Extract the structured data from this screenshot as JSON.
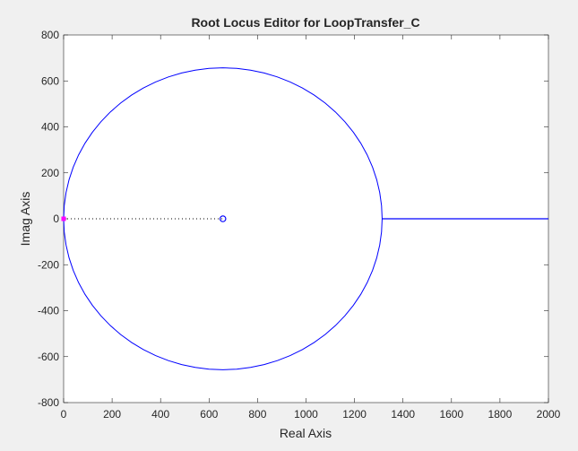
{
  "chart_data": {
    "type": "line",
    "title": "Root Locus Editor for LoopTransfer_C",
    "xlabel": "Real Axis",
    "ylabel": "Imag Axis",
    "xlim": [
      0,
      2000
    ],
    "ylim": [
      -800,
      800
    ],
    "xticks": [
      0,
      200,
      400,
      600,
      800,
      1000,
      1200,
      1400,
      1600,
      1800,
      2000
    ],
    "yticks": [
      -800,
      -600,
      -400,
      -200,
      0,
      200,
      400,
      600,
      800
    ],
    "xtick_labels": [
      "0",
      "200",
      "400",
      "600",
      "800",
      "1000",
      "1200",
      "1400",
      "1600",
      "1800",
      "2000"
    ],
    "ytick_labels": [
      "-800",
      "-600",
      "-400",
      "-200",
      "0",
      "200",
      "400",
      "600",
      "800"
    ],
    "grid": false,
    "series": [
      {
        "name": "root-locus-circle",
        "kind": "circle",
        "center": [
          657,
          0
        ],
        "radius": 657,
        "color": "#0000ff"
      },
      {
        "name": "real-axis-branch",
        "kind": "segment",
        "x": [
          1314,
          2000
        ],
        "y": [
          0,
          0
        ],
        "color": "#0000ff"
      },
      {
        "name": "closed-loop-branch",
        "kind": "segment",
        "x": [
          0,
          657
        ],
        "y": [
          0,
          0
        ],
        "color": "#000000",
        "style": "dotted"
      }
    ],
    "markers": [
      {
        "name": "zero",
        "symbol": "circle",
        "x": 657,
        "y": 0,
        "color": "#0000ff"
      },
      {
        "name": "closed-loop-pole",
        "symbol": "square",
        "x": 0,
        "y": 0,
        "color": "#ff00ff"
      }
    ]
  }
}
